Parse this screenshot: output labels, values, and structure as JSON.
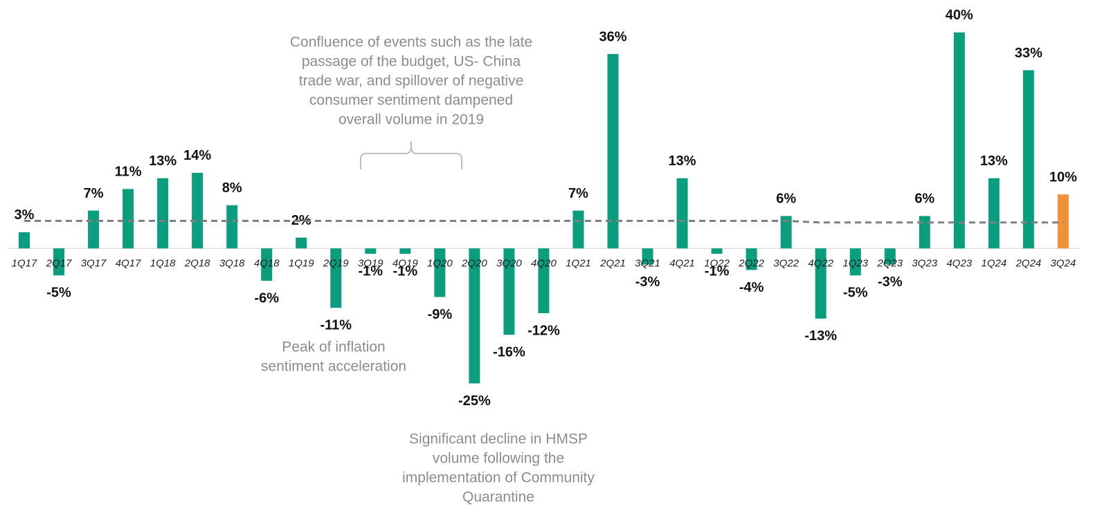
{
  "chart_data": {
    "type": "bar",
    "categories": [
      "1Q17",
      "2Q17",
      "3Q17",
      "4Q17",
      "1Q18",
      "2Q18",
      "3Q18",
      "4Q18",
      "1Q19",
      "2Q19",
      "3Q19",
      "4Q19",
      "1Q20",
      "2Q20",
      "3Q20",
      "4Q20",
      "1Q21",
      "2Q21",
      "3Q21",
      "4Q21",
      "1Q22",
      "2Q22",
      "3Q22",
      "4Q22",
      "1Q23",
      "2Q23",
      "3Q23",
      "4Q23",
      "1Q24",
      "2Q24",
      "3Q24"
    ],
    "values": [
      3,
      -5,
      7,
      11,
      13,
      14,
      8,
      -6,
      2,
      -11,
      -1,
      -1,
      -9,
      -25,
      -16,
      -12,
      7,
      36,
      -3,
      13,
      -1,
      -4,
      6,
      -13,
      -5,
      -3,
      6,
      40,
      13,
      33,
      10
    ],
    "value_labels": [
      "3%",
      "-5%",
      "7%",
      "11%",
      "13%",
      "14%",
      "8%",
      "-6%",
      "2%",
      "-11%",
      "-1%",
      "-1%",
      "-9%",
      "-25%",
      "-16%",
      "-12%",
      "7%",
      "36%",
      "-3%",
      "13%",
      "-1%",
      "-4%",
      "6%",
      "-13%",
      "-5%",
      "-3%",
      "6%",
      "40%",
      "13%",
      "33%",
      "10%"
    ],
    "colors": [
      "#0a9e7e",
      "#0a9e7e",
      "#0a9e7e",
      "#0a9e7e",
      "#0a9e7e",
      "#0a9e7e",
      "#0a9e7e",
      "#0a9e7e",
      "#0a9e7e",
      "#0a9e7e",
      "#0a9e7e",
      "#0a9e7e",
      "#0a9e7e",
      "#0a9e7e",
      "#0a9e7e",
      "#0a9e7e",
      "#0a9e7e",
      "#0a9e7e",
      "#0a9e7e",
      "#0a9e7e",
      "#0a9e7e",
      "#0a9e7e",
      "#0a9e7e",
      "#0a9e7e",
      "#0a9e7e",
      "#0a9e7e",
      "#0a9e7e",
      "#0a9e7e",
      "#0a9e7e",
      "#0a9e7e",
      "#f0923a"
    ],
    "trend_line": {
      "color": "#808080",
      "values": [
        5.1,
        5.1,
        5.1,
        5.1,
        5.1,
        5.1,
        5.1,
        5.1,
        5.1,
        5.1,
        5.1,
        5.1,
        5.1,
        5.1,
        5.1,
        5.1,
        5.1,
        5.1,
        5.1,
        5.1,
        5.1,
        5.1,
        5.1,
        4.8,
        4.8,
        4.8,
        4.8,
        4.8,
        4.8,
        4.8,
        4.8
      ]
    },
    "ylim": [
      -49,
      46
    ],
    "annotations": [
      {
        "lines": [
          "Confluence of events such as the late",
          "passage of the budget, US- China",
          "trade war, and spillover of negative",
          "consumer sentiment dampened",
          "overall volume in 2019"
        ]
      },
      {
        "lines": [
          "Peak of inflation",
          "sentiment acceleration"
        ]
      },
      {
        "lines": [
          "Significant decline in HMSP",
          "volume following the",
          "implementation of Community",
          "Quarantine"
        ]
      }
    ]
  }
}
